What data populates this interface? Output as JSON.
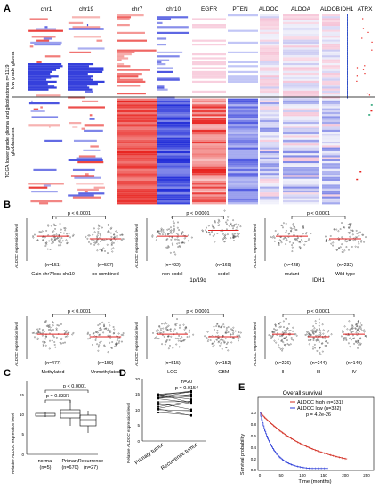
{
  "panel_labels": {
    "A": "A",
    "B": "B",
    "C": "C",
    "D": "D",
    "E": "E"
  },
  "panelA": {
    "columns": [
      "chr1",
      "chr19",
      "chr7",
      "chr10",
      "EGFR",
      "PTEN",
      "ALDOC",
      "ALDOA",
      "ALDOB",
      "IDH1",
      "ATRX"
    ],
    "row_label_top": "TCGA lower grade glioma and glioblastoma n=1119",
    "row_label_lgg": "low grade glioma",
    "row_label_gbm": "glioblastoma",
    "colors": {
      "red": "#e8231f",
      "blue": "#1f2bd8",
      "pink": "#f6c3d6",
      "white": "#ffffff"
    }
  },
  "panelB": [
    {
      "ylabel_italic": "ALDOC",
      "ylabel_rest": " expression level",
      "p": "p < 0.0001",
      "groups": [
        {
          "label": "Gain chr7/loss chr10",
          "n": "(n=151)"
        },
        {
          "label": "no combined",
          "n": "(n=507)"
        }
      ],
      "xlabel": ""
    },
    {
      "ylabel_italic": "ALDOC",
      "ylabel_rest": " expression level",
      "p": "p < 0.0001",
      "groups": [
        {
          "label": "non-codel",
          "n": "(n=492)"
        },
        {
          "label": "codel",
          "n": "(n=169)"
        }
      ],
      "xlabel": "1p/19q"
    },
    {
      "ylabel_italic": "ALDOC",
      "ylabel_rest": " expression level",
      "p": "p < 0.0001",
      "groups": [
        {
          "label": "mutant",
          "n": "(n=428)"
        },
        {
          "label": "Wild-type",
          "n": "(n=232)"
        }
      ],
      "xlabel": "IDH1"
    },
    {
      "ylabel_italic": "ALDOC",
      "ylabel_rest": " expression level",
      "p": "p < 0.0001",
      "groups": [
        {
          "label": "Methylated",
          "n": "(n=477)"
        },
        {
          "label": "Unmethylated",
          "n": "(n=159)"
        }
      ],
      "xlabel": ""
    },
    {
      "ylabel_italic": "ALDOC",
      "ylabel_rest": " expression level",
      "p": "p < 0.0001",
      "groups": [
        {
          "label": "LGG",
          "n": "(n=515)"
        },
        {
          "label": "GBM",
          "n": "(n=152)"
        }
      ],
      "xlabel": ""
    },
    {
      "ylabel_italic": "ALDOC",
      "ylabel_rest": " expression level",
      "p": "p < 0.0001",
      "groups": [
        {
          "label": "II",
          "n": "(n=226)"
        },
        {
          "label": "III",
          "n": "(n=244)"
        },
        {
          "label": "IV",
          "n": "(n=149)"
        }
      ],
      "xlabel": ""
    }
  ],
  "panelC": {
    "ylabel_pre": "Relative ",
    "ylabel_italic": "ALDOC",
    "ylabel_rest": " expression level",
    "p1": "p = 0.8337",
    "p2": "p < 0.0001",
    "groups": [
      {
        "label": "normal",
        "n": "(n=5)"
      },
      {
        "label": "Primary",
        "n": "(n=670)"
      },
      {
        "label": "Recurrence",
        "n": "(n=27)"
      }
    ],
    "yticks": [
      "15",
      "10",
      "5",
      "0"
    ]
  },
  "panelD": {
    "ylabel_pre": "Relative ",
    "ylabel_italic": "ALDOC",
    "ylabel_rest": " expression level",
    "n": "n=20",
    "p": "p = 0.0154",
    "groups": [
      "Primary tumor",
      "Recurrence tumor"
    ],
    "yticks": [
      "20",
      "15",
      "10",
      "5",
      "0"
    ]
  },
  "panelE": {
    "title": "Overall survival",
    "legend": [
      {
        "label": "ALDOC high (n=331)",
        "color": "#d22b1f"
      },
      {
        "label": "ALDOC low (n=332)",
        "color": "#2a3bd8"
      }
    ],
    "pval": "p = 4.2e-26",
    "xlabel": "Time (months)",
    "ylabel": "Survival probability",
    "xticks": [
      "0",
      "50",
      "100",
      "150",
      "200",
      "250"
    ],
    "yticks": [
      "1.0",
      "0.8",
      "0.6",
      "0.4",
      "0.2",
      "0.0"
    ]
  }
}
